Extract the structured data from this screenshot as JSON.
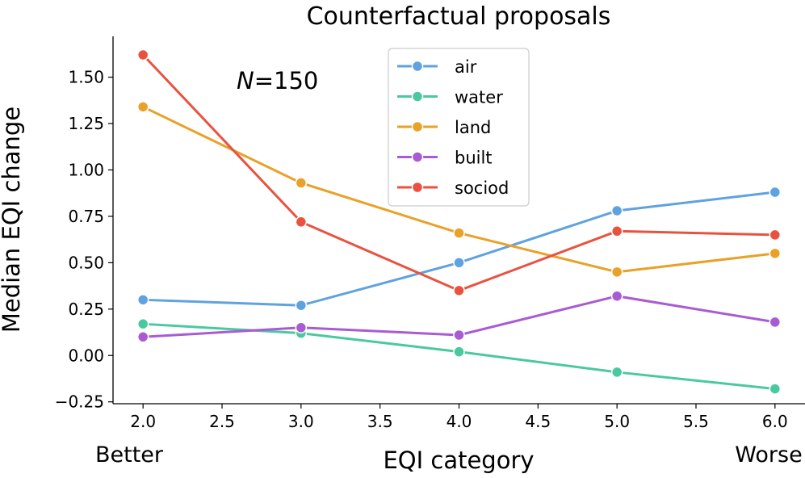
{
  "chart_data": {
    "type": "line",
    "title": "Counterfactual proposals",
    "xlabel": "EQI category",
    "ylabel": "Median EQI change",
    "annotation": {
      "italic": "N",
      "rest": "=150"
    },
    "x_end_labels": {
      "left": "Better",
      "right": "Worse"
    },
    "xlim": [
      1.81,
      6.19
    ],
    "ylim": [
      -0.26,
      1.72
    ],
    "xticks": [
      2.0,
      2.5,
      3.0,
      3.5,
      4.0,
      4.5,
      5.0,
      5.5,
      6.0
    ],
    "xtick_labels": [
      "2.0",
      "2.5",
      "3.0",
      "3.5",
      "4.0",
      "4.5",
      "5.0",
      "5.5",
      "6.0"
    ],
    "yticks": [
      -0.25,
      0.0,
      0.25,
      0.5,
      0.75,
      1.0,
      1.25,
      1.5
    ],
    "ytick_labels": [
      "−0.25",
      "0.00",
      "0.25",
      "0.50",
      "0.75",
      "1.00",
      "1.25",
      "1.50"
    ],
    "grid": false,
    "legend_position": "top-center",
    "x": [
      2,
      3,
      4,
      5,
      6
    ],
    "series": [
      {
        "name": "air",
        "color": "#5fa2e0",
        "values": [
          0.3,
          0.27,
          0.5,
          0.78,
          0.88
        ]
      },
      {
        "name": "water",
        "color": "#4ac99e",
        "values": [
          0.17,
          0.12,
          0.02,
          -0.09,
          -0.18
        ]
      },
      {
        "name": "land",
        "color": "#e9a128",
        "values": [
          1.34,
          0.93,
          0.66,
          0.45,
          0.55
        ]
      },
      {
        "name": "built",
        "color": "#a85bd3",
        "values": [
          0.1,
          0.15,
          0.11,
          0.32,
          0.18
        ]
      },
      {
        "name": "sociod",
        "color": "#ea5240",
        "values": [
          1.62,
          0.72,
          0.35,
          0.67,
          0.65
        ]
      }
    ]
  }
}
